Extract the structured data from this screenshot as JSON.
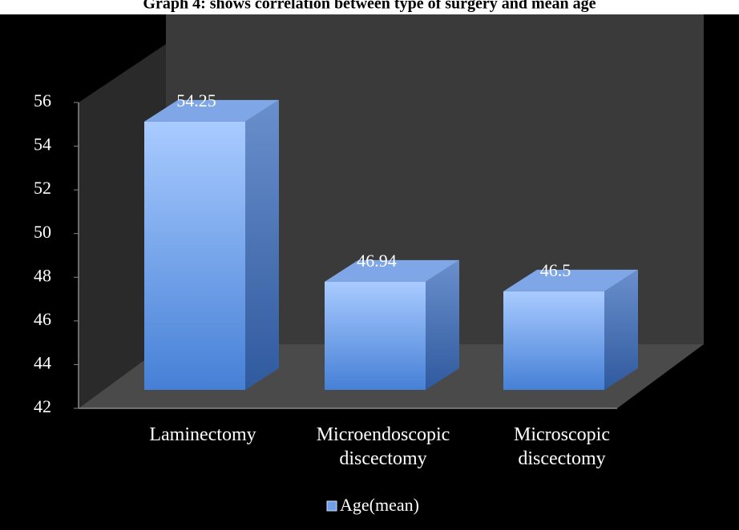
{
  "chart_data": {
    "type": "bar3d",
    "title": "Graph 4: shows correlation between type of surgery and mean age",
    "categories": [
      "Laminectomy",
      "Microendoscopic discectomy",
      "Microscopic discectomy"
    ],
    "series": [
      {
        "name": "Age(mean)",
        "color": "#6f9fe8",
        "values": [
          54.25,
          46.94,
          46.5
        ]
      }
    ],
    "ylim": [
      42,
      56
    ],
    "yticks": [
      42,
      44,
      46,
      48,
      50,
      52,
      54,
      56
    ],
    "legend": "bottom"
  }
}
